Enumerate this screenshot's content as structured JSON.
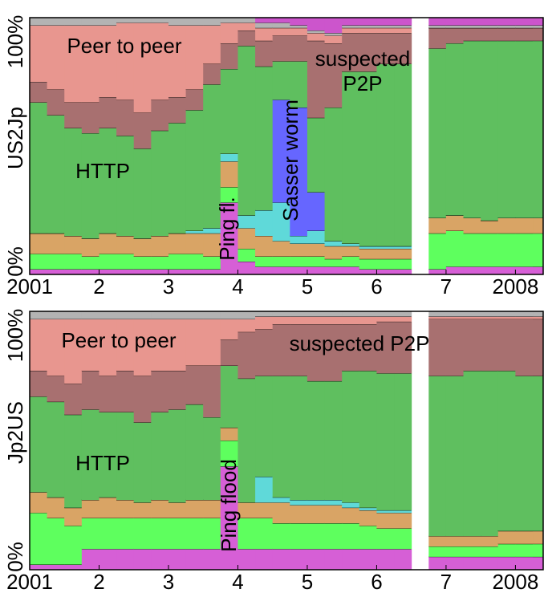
{
  "chart_data": [
    {
      "type": "stacked-step-area",
      "ylabel": "US2Jp",
      "annotations": [
        "Peer to peer",
        "HTTP",
        "suspected",
        "P2P",
        "Ping fl.",
        "Sasser worm"
      ],
      "xlim": [
        2001,
        2008.4
      ],
      "ylim": [
        0,
        100
      ],
      "xticks": [
        2001,
        {
          "value": 2002,
          "label": "2"
        },
        {
          "value": 2003,
          "label": "3"
        },
        {
          "value": 2004,
          "label": "4"
        },
        {
          "value": 2005,
          "label": "5"
        },
        {
          "value": 2006,
          "label": "6"
        },
        {
          "value": 2007,
          "label": "7"
        },
        2008
      ],
      "yticks": [
        {
          "value": 0,
          "label": "0%"
        },
        {
          "value": 100,
          "label": "100%"
        }
      ],
      "x": [
        2001,
        2001.25,
        2001.5,
        2001.75,
        2002,
        2002.25,
        2002.5,
        2002.75,
        2003,
        2003.25,
        2003.5,
        2003.75,
        2004,
        2004.25,
        2004.5,
        2004.75,
        2005,
        2005.25,
        2005.5,
        2005.75,
        2006,
        2006.25,
        2006.5,
        2006.75,
        2007,
        2007.25,
        2007.5,
        2007.75,
        2008,
        2008.25
      ],
      "series": [
        {
          "color": "#d65fd6",
          "values": [
            2,
            2,
            2,
            2,
            2,
            2,
            2,
            2,
            2,
            2,
            2,
            28,
            5,
            3,
            3,
            3,
            3,
            3,
            3,
            2,
            2,
            2,
            null,
            2,
            3,
            3,
            3,
            3,
            3,
            3
          ]
        },
        {
          "color": "#5eff5e",
          "values": [
            6,
            6,
            6,
            5,
            6,
            6,
            5,
            5,
            6,
            6,
            5,
            6,
            5,
            4,
            4,
            4,
            4,
            3,
            4,
            4,
            4,
            4,
            null,
            14,
            14,
            13,
            13,
            13,
            13,
            13
          ]
        },
        {
          "color": "#d9a465",
          "values": [
            8,
            8,
            7,
            7,
            8,
            7,
            7,
            8,
            8,
            8,
            9,
            10,
            8,
            8,
            6,
            5,
            5,
            5,
            4,
            4,
            4,
            4,
            null,
            6,
            6,
            6,
            5,
            6,
            6,
            6
          ]
        },
        {
          "color": "#5fd9d9",
          "values": [
            0,
            0,
            0,
            0,
            0,
            0,
            0,
            0,
            0,
            1,
            2,
            3,
            5,
            10,
            15,
            3,
            5,
            2,
            1,
            1,
            1,
            1,
            null,
            0,
            0,
            0,
            0,
            0,
            0,
            0
          ]
        },
        {
          "color": "#6666ff",
          "values": [
            0,
            0,
            0,
            0,
            0,
            0,
            0,
            0,
            0,
            0,
            0,
            0,
            0,
            0,
            40,
            50,
            15,
            0,
            0,
            0,
            0,
            0,
            null,
            0,
            0,
            0,
            0,
            0,
            0,
            0
          ]
        },
        {
          "color": "#5fbf5f",
          "values": [
            51,
            46,
            42,
            41,
            41,
            39,
            35,
            41,
            43,
            47,
            56,
            33,
            66,
            56,
            15,
            18,
            29,
            52,
            67,
            68,
            71,
            71,
            null,
            66,
            67,
            69,
            70,
            69,
            69,
            69
          ]
        },
        {
          "color": "#a87070",
          "values": [
            8,
            10,
            10,
            12,
            12,
            14,
            14,
            12,
            10,
            8,
            8,
            10,
            6,
            10,
            10,
            10,
            30,
            25,
            15,
            15,
            12,
            12,
            null,
            8,
            6,
            5,
            5,
            5,
            5,
            5
          ]
        },
        {
          "color": "#e8968f",
          "values": [
            22,
            25,
            30,
            30,
            28,
            30,
            35,
            30,
            28,
            25,
            15,
            8,
            3,
            5,
            3,
            3,
            3,
            3,
            2,
            2,
            2,
            2,
            null,
            0,
            0,
            0,
            0,
            0,
            0,
            0
          ]
        },
        {
          "color": "#b3b3b3",
          "values": [
            3,
            3,
            3,
            3,
            3,
            2,
            2,
            2,
            3,
            3,
            3,
            2,
            2,
            2,
            2,
            1,
            1,
            1,
            1,
            1,
            1,
            1,
            null,
            1,
            1,
            1,
            1,
            1,
            1,
            1
          ]
        },
        {
          "color": "#cc55cc",
          "values": [
            0,
            0,
            0,
            0,
            0,
            0,
            0,
            0,
            0,
            0,
            0,
            0,
            0,
            2,
            2,
            3,
            5,
            6,
            3,
            3,
            3,
            3,
            null,
            3,
            3,
            3,
            3,
            3,
            3,
            3
          ]
        }
      ]
    },
    {
      "type": "stacked-step-area",
      "ylabel": "Jp2US",
      "annotations": [
        "Peer to peer",
        "suspected P2P",
        "HTTP",
        "Ping flood"
      ],
      "xlim": [
        2001,
        2008.4
      ],
      "ylim": [
        0,
        100
      ],
      "xticks": [
        2001,
        {
          "value": 2002,
          "label": "2"
        },
        {
          "value": 2003,
          "label": "3"
        },
        {
          "value": 2004,
          "label": "4"
        },
        {
          "value": 2005,
          "label": "5"
        },
        {
          "value": 2006,
          "label": "6"
        },
        {
          "value": 2007,
          "label": "7"
        },
        2008
      ],
      "yticks": [
        {
          "value": 0,
          "label": "0%"
        },
        {
          "value": 100,
          "label": "100%"
        }
      ],
      "x": [
        2001,
        2001.25,
        2001.5,
        2001.75,
        2002,
        2002.25,
        2002.5,
        2002.75,
        2003,
        2003.25,
        2003.5,
        2003.75,
        2004,
        2004.25,
        2004.5,
        2004.75,
        2005,
        2005.25,
        2005.5,
        2005.75,
        2006,
        2006.25,
        2006.5,
        2006.75,
        2007,
        2007.25,
        2007.5,
        2007.75,
        2008,
        2008.25
      ],
      "series": [
        {
          "color": "#d65fd6",
          "values": [
            2,
            2,
            2,
            8,
            8,
            8,
            8,
            8,
            8,
            8,
            8,
            40,
            8,
            8,
            8,
            8,
            8,
            8,
            8,
            8,
            8,
            8,
            null,
            5,
            5,
            5,
            5,
            5,
            5,
            5
          ]
        },
        {
          "color": "#5eff5e",
          "values": [
            20,
            18,
            15,
            12,
            12,
            12,
            12,
            12,
            12,
            12,
            12,
            10,
            12,
            12,
            10,
            10,
            10,
            10,
            10,
            9,
            8,
            8,
            null,
            4,
            4,
            4,
            4,
            5,
            5,
            5
          ]
        },
        {
          "color": "#d9a465",
          "values": [
            8,
            8,
            7,
            7,
            8,
            7,
            6,
            7,
            6,
            7,
            7,
            5,
            6,
            6,
            8,
            7,
            7,
            7,
            6,
            6,
            6,
            6,
            null,
            4,
            4,
            4,
            4,
            5,
            5,
            5
          ]
        },
        {
          "color": "#5fd9d9",
          "values": [
            0,
            0,
            0,
            0,
            0,
            0,
            0,
            0,
            0,
            0,
            0,
            0,
            0,
            10,
            2,
            2,
            2,
            2,
            2,
            1,
            1,
            1,
            null,
            0,
            0,
            0,
            0,
            0,
            0,
            0
          ]
        },
        {
          "color": "#5fbf5f",
          "values": [
            37,
            37,
            36,
            35,
            33,
            34,
            31,
            34,
            36,
            37,
            32,
            24,
            48,
            39,
            47,
            48,
            46,
            46,
            51,
            53,
            53,
            53,
            null,
            62,
            62,
            64,
            64,
            62,
            60,
            60
          ]
        },
        {
          "color": "#a87070",
          "values": [
            10,
            10,
            12,
            15,
            14,
            16,
            18,
            16,
            15,
            15,
            20,
            10,
            18,
            18,
            20,
            20,
            22,
            22,
            18,
            18,
            20,
            20,
            null,
            22,
            22,
            20,
            20,
            20,
            22,
            22
          ]
        },
        {
          "color": "#e8968f",
          "values": [
            20,
            22,
            25,
            20,
            22,
            20,
            22,
            20,
            20,
            18,
            18,
            8,
            5,
            5,
            3,
            3,
            3,
            3,
            3,
            3,
            2,
            2,
            null,
            1,
            1,
            1,
            1,
            1,
            1,
            1
          ]
        },
        {
          "color": "#b3b3b3",
          "values": [
            3,
            3,
            3,
            3,
            3,
            3,
            3,
            3,
            3,
            3,
            3,
            3,
            3,
            2,
            2,
            2,
            2,
            2,
            2,
            2,
            2,
            2,
            null,
            2,
            2,
            2,
            2,
            2,
            2,
            2
          ]
        }
      ]
    }
  ]
}
